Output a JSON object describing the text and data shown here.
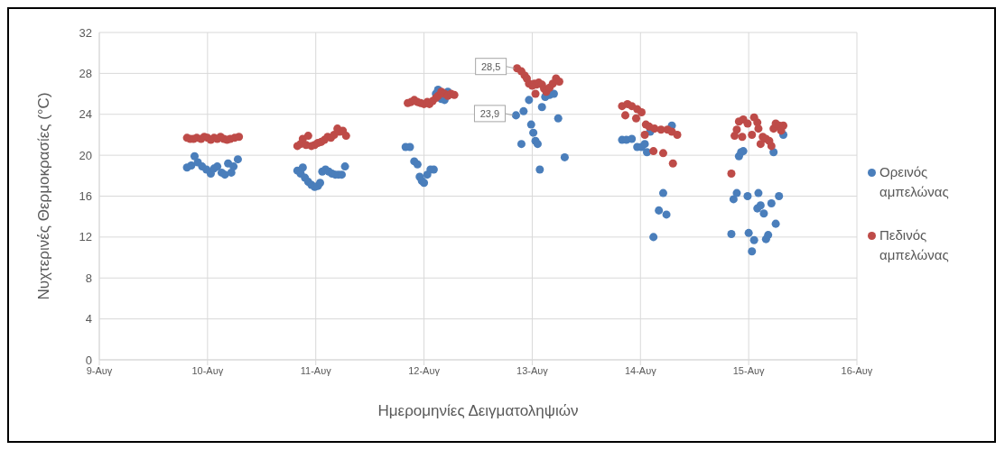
{
  "chart_data": {
    "type": "scatter",
    "xlabel": "Ημερομηνίες Δειγματοληψιών",
    "ylabel": "Νυχτερινές Θερμοκρασίες (°C)",
    "xlim": [
      9,
      16
    ],
    "xticks": [
      {
        "value": 9,
        "label": "9-Αυγ"
      },
      {
        "value": 10,
        "label": "10-Αυγ"
      },
      {
        "value": 11,
        "label": "11-Αυγ"
      },
      {
        "value": 12,
        "label": "12-Αυγ"
      },
      {
        "value": 13,
        "label": "13-Αυγ"
      },
      {
        "value": 14,
        "label": "14-Αυγ"
      },
      {
        "value": 15,
        "label": "15-Αυγ"
      },
      {
        "value": 16,
        "label": "16-Αυγ"
      }
    ],
    "ylim": [
      0,
      32
    ],
    "yticks": [
      0,
      4,
      8,
      12,
      16,
      20,
      24,
      28,
      32
    ],
    "grid": true,
    "legend": "right",
    "marker": "circle",
    "series": [
      {
        "name": "Ορεινός αμπελώνας",
        "color": "#4a7ebb",
        "x": [
          9.81,
          9.85,
          9.88,
          9.91,
          9.95,
          9.99,
          10.03,
          10.06,
          10.09,
          10.13,
          10.16,
          10.19,
          10.22,
          10.24,
          10.28,
          10.83,
          10.86,
          10.88,
          10.9,
          10.93,
          10.96,
          10.99,
          11.02,
          11.04,
          11.06,
          11.09,
          11.12,
          11.15,
          11.18,
          11.21,
          11.24,
          11.27,
          11.83,
          11.87,
          11.91,
          11.94,
          11.96,
          11.98,
          12.0,
          12.03,
          12.06,
          12.09,
          12.11,
          12.13,
          12.16,
          12.19,
          12.22,
          12.26,
          12.85,
          12.9,
          12.92,
          12.97,
          12.99,
          13.01,
          13.03,
          13.05,
          13.07,
          13.09,
          13.12,
          13.16,
          13.2,
          13.24,
          13.3,
          13.83,
          13.87,
          13.92,
          13.97,
          14.01,
          14.04,
          14.06,
          14.09,
          14.12,
          14.17,
          14.21,
          14.24,
          14.29,
          14.84,
          14.86,
          14.89,
          14.91,
          14.93,
          14.95,
          14.99,
          15.0,
          15.03,
          15.05,
          15.08,
          15.09,
          15.11,
          15.14,
          15.16,
          15.18,
          15.21,
          15.23,
          15.25,
          15.28,
          15.32
        ],
        "values": [
          18.8,
          19.0,
          19.9,
          19.3,
          18.9,
          18.6,
          18.2,
          18.7,
          18.9,
          18.3,
          18.1,
          19.2,
          18.3,
          18.9,
          19.6,
          18.5,
          18.2,
          18.8,
          17.8,
          17.4,
          17.1,
          16.9,
          17.0,
          17.3,
          18.4,
          18.6,
          18.4,
          18.2,
          18.1,
          18.1,
          18.1,
          18.9,
          20.8,
          20.8,
          19.4,
          19.1,
          17.9,
          17.5,
          17.3,
          18.1,
          18.6,
          18.6,
          26.0,
          26.4,
          25.5,
          25.4,
          26.2,
          null,
          23.9,
          21.1,
          24.3,
          25.4,
          23.0,
          22.2,
          21.4,
          21.1,
          18.6,
          24.7,
          25.7,
          25.9,
          26.0,
          23.6,
          19.8,
          21.5,
          21.5,
          21.6,
          20.8,
          20.8,
          21.1,
          20.3,
          22.3,
          12.0,
          14.6,
          16.3,
          14.2,
          22.9,
          12.3,
          15.7,
          16.3,
          19.9,
          20.3,
          20.4,
          16.0,
          12.4,
          10.6,
          11.7,
          14.8,
          16.3,
          15.1,
          14.3,
          11.8,
          12.2,
          15.3,
          20.3,
          13.3,
          16.0,
          22.0
        ]
      },
      {
        "name": "Πεδινός αμπελώνας",
        "color": "#be4b48",
        "x": [
          9.81,
          9.84,
          9.87,
          9.9,
          9.94,
          9.97,
          10.0,
          10.03,
          10.06,
          10.09,
          10.12,
          10.15,
          10.18,
          10.21,
          10.25,
          10.29,
          10.83,
          10.86,
          10.88,
          10.91,
          10.93,
          10.96,
          10.99,
          11.02,
          11.05,
          11.08,
          11.11,
          11.14,
          11.17,
          11.2,
          11.22,
          11.25,
          11.28,
          11.85,
          11.88,
          11.91,
          11.94,
          11.97,
          12.0,
          12.03,
          12.05,
          12.08,
          12.11,
          12.13,
          12.16,
          12.19,
          12.22,
          12.25,
          12.28,
          12.86,
          12.9,
          12.93,
          12.95,
          12.97,
          13.0,
          13.02,
          13.03,
          13.04,
          13.06,
          13.09,
          13.11,
          13.13,
          13.16,
          13.19,
          13.22,
          13.25,
          13.83,
          13.86,
          13.88,
          13.92,
          13.96,
          13.97,
          14.01,
          14.04,
          14.05,
          14.08,
          14.12,
          14.13,
          14.19,
          14.21,
          14.25,
          14.29,
          14.3,
          14.34,
          14.84,
          14.87,
          14.89,
          14.91,
          14.94,
          14.95,
          14.99,
          15.03,
          15.05,
          15.08,
          15.09,
          15.11,
          15.13,
          15.16,
          15.19,
          15.21,
          15.23,
          15.25,
          15.28,
          15.3,
          15.32
        ],
        "values": [
          21.7,
          21.6,
          21.6,
          21.7,
          21.6,
          21.8,
          21.7,
          21.5,
          21.7,
          21.6,
          21.8,
          21.6,
          21.5,
          21.6,
          21.7,
          21.8,
          20.9,
          21.1,
          21.6,
          21.0,
          21.9,
          20.9,
          21.0,
          21.2,
          21.3,
          21.5,
          21.8,
          21.7,
          22.0,
          22.6,
          22.3,
          22.4,
          21.9,
          25.1,
          25.2,
          25.4,
          25.2,
          25.1,
          25.0,
          25.2,
          25.0,
          25.3,
          25.6,
          25.8,
          26.2,
          26.0,
          25.8,
          26.0,
          25.9,
          28.5,
          28.2,
          27.8,
          27.5,
          27.0,
          26.8,
          27.0,
          26.0,
          26.9,
          27.1,
          26.9,
          26.5,
          26.2,
          26.6,
          27.0,
          27.5,
          27.2,
          24.8,
          23.9,
          25.0,
          24.8,
          23.6,
          24.5,
          24.2,
          22.0,
          23.0,
          22.8,
          20.4,
          22.6,
          22.5,
          20.2,
          22.5,
          22.3,
          19.2,
          22.0,
          18.2,
          21.9,
          22.5,
          23.3,
          21.8,
          23.5,
          23.1,
          22.0,
          23.7,
          23.2,
          22.6,
          21.1,
          21.8,
          21.6,
          21.4,
          20.9,
          22.6,
          23.1,
          22.9,
          22.4,
          22.9
        ]
      }
    ],
    "annotations": [
      {
        "text": "28,5",
        "x": 12.86,
        "y": 28.5
      },
      {
        "text": "23,9",
        "x": 12.85,
        "y": 23.9
      }
    ]
  }
}
